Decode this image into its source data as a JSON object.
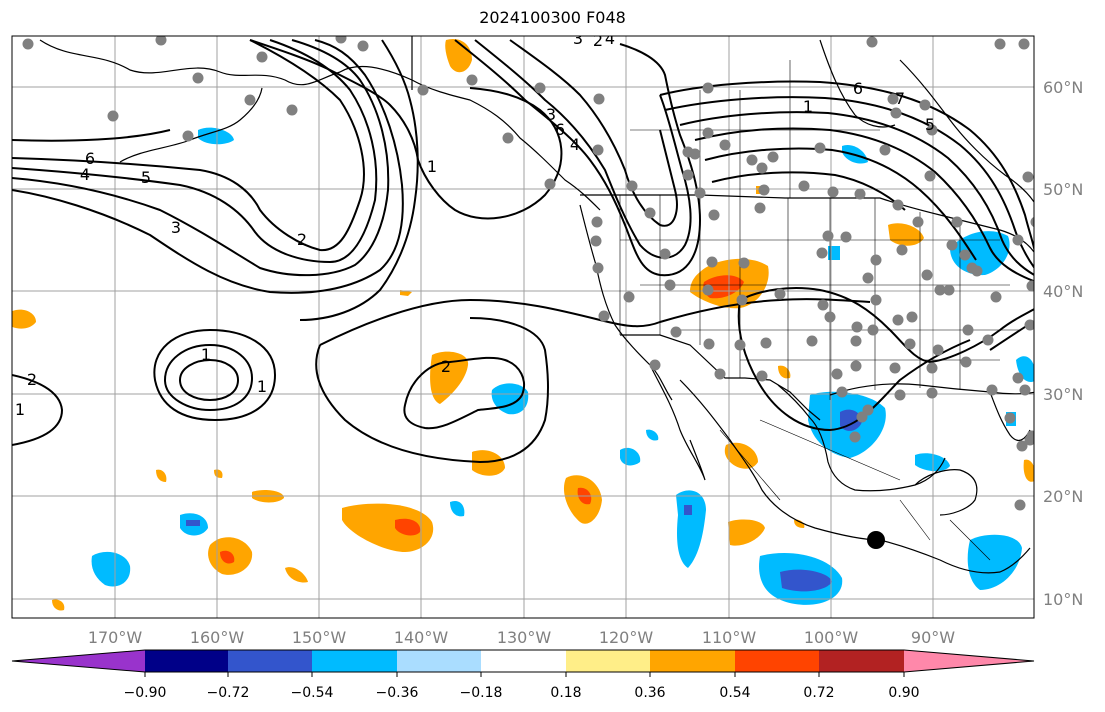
{
  "title": "2024100300 F048",
  "map": {
    "longitude_labels": [
      "170°W",
      "160°W",
      "150°W",
      "140°W",
      "130°W",
      "120°W",
      "110°W",
      "100°W",
      "90°W"
    ],
    "latitude_labels": [
      "60°N",
      "50°N",
      "40°N",
      "30°N",
      "20°N",
      "10°N"
    ],
    "grid_color": "#a0a0a0",
    "coast_color": "#000000",
    "station_color": "#808080",
    "marker_color": "#000000"
  },
  "contours": {
    "color": "#000000",
    "labels": [
      "6",
      "4",
      "5",
      "3",
      "2",
      "1",
      "1",
      "2",
      "1",
      "2",
      "1",
      "2",
      "3",
      "4",
      "3",
      "6",
      "4",
      "1",
      "6",
      "7",
      "5"
    ]
  },
  "colorbar": {
    "colors": [
      "#9933cc",
      "#000088",
      "#3355cc",
      "#00bbff",
      "#aaddff",
      "#ffffff",
      "#ffee88",
      "#ffa500",
      "#ff4400",
      "#b22222",
      "#ff88aa"
    ],
    "tick_labels": [
      "−0.90",
      "−0.72",
      "−0.54",
      "−0.36",
      "−0.18",
      "0.18",
      "0.36",
      "0.54",
      "0.72",
      "0.90"
    ]
  }
}
